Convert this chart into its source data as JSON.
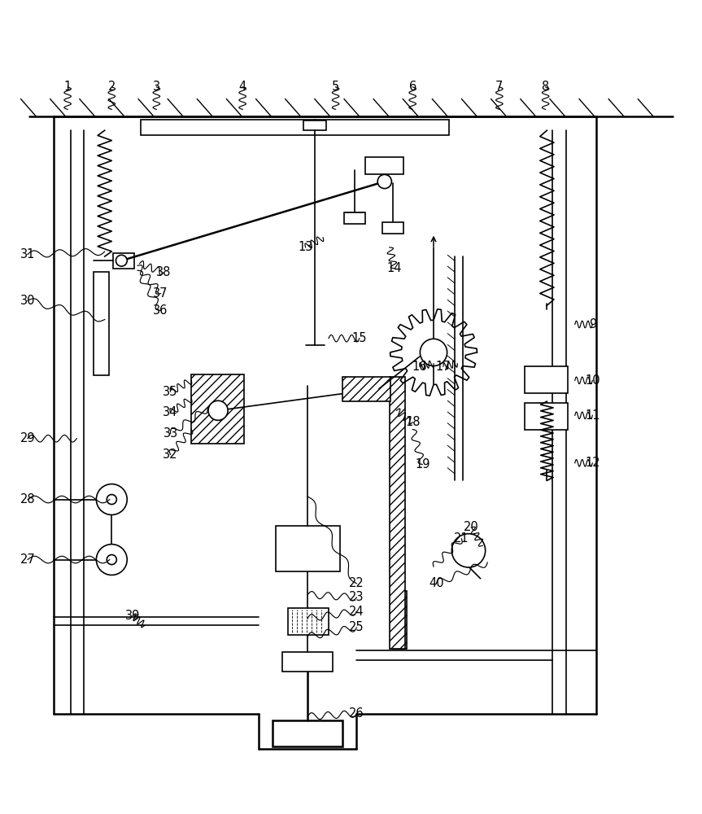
{
  "bg_color": "#ffffff",
  "line_color": "#000000",
  "fig_width": 8.63,
  "fig_height": 10.0,
  "label_positions": {
    "1": [
      0.095,
      0.957,
      0.095,
      0.925
    ],
    "2": [
      0.158,
      0.957,
      0.158,
      0.925
    ],
    "3": [
      0.222,
      0.957,
      0.222,
      0.925
    ],
    "4": [
      0.345,
      0.957,
      0.345,
      0.925
    ],
    "5": [
      0.478,
      0.957,
      0.478,
      0.925
    ],
    "6": [
      0.588,
      0.957,
      0.588,
      0.925
    ],
    "7": [
      0.712,
      0.957,
      0.712,
      0.925
    ],
    "8": [
      0.778,
      0.957,
      0.778,
      0.925
    ],
    "9": [
      0.845,
      0.618,
      0.82,
      0.618
    ],
    "10": [
      0.845,
      0.538,
      0.82,
      0.538
    ],
    "11": [
      0.845,
      0.488,
      0.82,
      0.488
    ],
    "12": [
      0.845,
      0.42,
      0.82,
      0.42
    ],
    "13": [
      0.435,
      0.728,
      0.46,
      0.742
    ],
    "14": [
      0.562,
      0.698,
      0.555,
      0.728
    ],
    "15": [
      0.512,
      0.598,
      0.468,
      0.598
    ],
    "16": [
      0.598,
      0.558,
      0.618,
      0.562
    ],
    "17": [
      0.632,
      0.558,
      0.652,
      0.562
    ],
    "18": [
      0.588,
      0.478,
      0.565,
      0.495
    ],
    "19": [
      0.602,
      0.418,
      0.588,
      0.468
    ],
    "20": [
      0.672,
      0.328,
      0.688,
      0.302
    ],
    "21": [
      0.658,
      0.312,
      0.618,
      0.272
    ],
    "22": [
      0.508,
      0.248,
      0.438,
      0.372
    ],
    "23": [
      0.508,
      0.228,
      0.438,
      0.232
    ],
    "24": [
      0.508,
      0.208,
      0.438,
      0.198
    ],
    "25": [
      0.508,
      0.185,
      0.438,
      0.172
    ],
    "26": [
      0.508,
      0.062,
      0.438,
      0.058
    ],
    "27": [
      0.038,
      0.282,
      0.155,
      0.282
    ],
    "28": [
      0.038,
      0.368,
      0.155,
      0.368
    ],
    "29": [
      0.038,
      0.455,
      0.108,
      0.455
    ],
    "30": [
      0.038,
      0.652,
      0.148,
      0.625
    ],
    "31": [
      0.038,
      0.718,
      0.148,
      0.722
    ],
    "32": [
      0.242,
      0.432,
      0.272,
      0.468
    ],
    "33": [
      0.242,
      0.462,
      0.295,
      0.498
    ],
    "34": [
      0.242,
      0.492,
      0.272,
      0.512
    ],
    "35": [
      0.242,
      0.522,
      0.272,
      0.538
    ],
    "36": [
      0.228,
      0.638,
      0.195,
      0.695
    ],
    "37": [
      0.228,
      0.662,
      0.195,
      0.702
    ],
    "38": [
      0.232,
      0.692,
      0.198,
      0.705
    ],
    "39": [
      0.188,
      0.202,
      0.205,
      0.188
    ],
    "40": [
      0.622,
      0.248,
      0.695,
      0.278
    ]
  }
}
